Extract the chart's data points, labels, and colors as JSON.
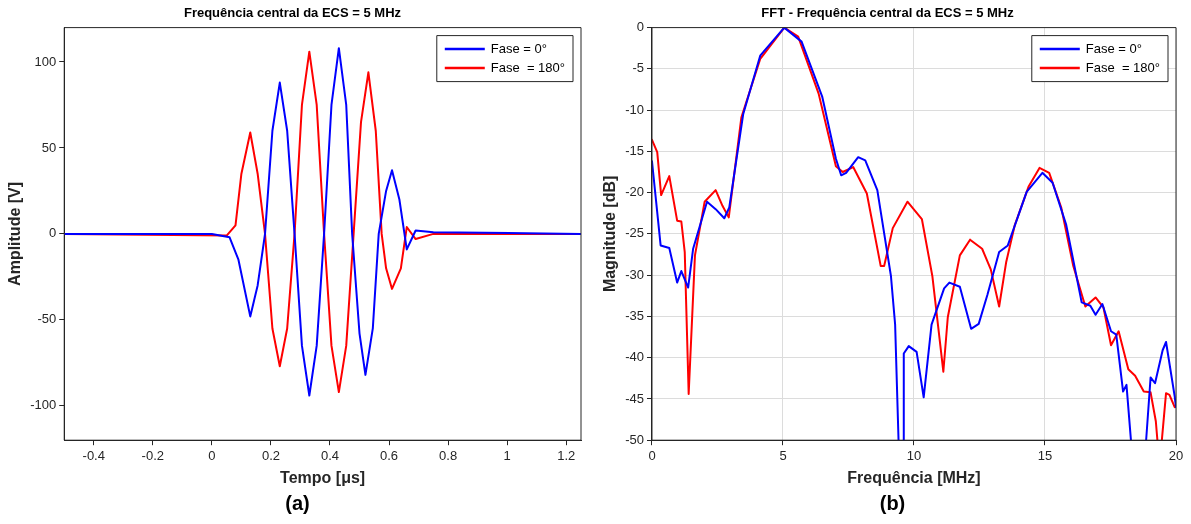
{
  "chart_data": [
    {
      "type": "line",
      "title": "Frequência central da ECS = 5 MHz",
      "xlabel": "Tempo [μs]",
      "ylabel": "Amplitude [V]",
      "xlim": [
        -0.5,
        1.25
      ],
      "xticks": [
        -0.4,
        -0.2,
        0,
        0.2,
        0.4,
        0.6,
        0.8,
        1,
        1.2
      ],
      "ylim": [
        -120,
        120
      ],
      "yticks": [
        -100,
        -50,
        0,
        50,
        100
      ],
      "grid": false,
      "legend": "top right",
      "marker": "none",
      "line_style": "solid",
      "annotations": [
        "(a)"
      ],
      "series": [
        {
          "name": "Fase = 0°",
          "color": "#0000ff",
          "x": [
            -0.5,
            0,
            0.06,
            0.09,
            0.13,
            0.155,
            0.18,
            0.205,
            0.23,
            0.255,
            0.28,
            0.305,
            0.33,
            0.355,
            0.38,
            0.405,
            0.43,
            0.455,
            0.475,
            0.5,
            0.52,
            0.545,
            0.565,
            0.59,
            0.61,
            0.635,
            0.66,
            0.69,
            0.75,
            1.25
          ],
          "values": [
            0,
            0,
            -2,
            -15,
            -48,
            -30,
            0,
            60,
            88,
            60,
            0,
            -65,
            -94,
            -65,
            0,
            75,
            108,
            75,
            0,
            -58,
            -82,
            -55,
            0,
            25,
            37,
            20,
            -9,
            2,
            1,
            0
          ]
        },
        {
          "name": "Fase  = 180°",
          "color": "#ff0000",
          "x": [
            -0.5,
            0.05,
            0.08,
            0.1,
            0.13,
            0.155,
            0.18,
            0.205,
            0.23,
            0.255,
            0.28,
            0.305,
            0.33,
            0.355,
            0.38,
            0.405,
            0.43,
            0.455,
            0.48,
            0.505,
            0.53,
            0.555,
            0.575,
            0.59,
            0.61,
            0.64,
            0.66,
            0.69,
            0.75,
            1.25
          ],
          "values": [
            0,
            -1,
            5,
            35,
            59,
            35,
            0,
            -55,
            -77,
            -55,
            0,
            75,
            106,
            75,
            0,
            -65,
            -92,
            -65,
            0,
            65,
            94,
            60,
            0,
            -20,
            -32,
            -20,
            4,
            -3,
            0,
            0
          ]
        }
      ]
    },
    {
      "type": "line",
      "title": "FFT - Frequência central da ECS = 5 MHz",
      "xlabel": "Frequência [MHz]",
      "ylabel": "Magnitude [dB]",
      "xlim": [
        0,
        20
      ],
      "xticks": [
        0,
        5,
        10,
        15,
        20
      ],
      "ylim": [
        -50,
        0
      ],
      "yticks": [
        -50,
        -45,
        -40,
        -35,
        -30,
        -25,
        -20,
        -15,
        -10,
        -5,
        0
      ],
      "grid": true,
      "legend": "top right",
      "marker": "none",
      "line_style": "solid",
      "annotations": [
        "(b)"
      ],
      "series": [
        {
          "name": "Fase = 0°",
          "color": "#0000ff",
          "x": [
            0,
            0.33,
            0.66,
            0.96,
            1.12,
            1.38,
            1.57,
            2.1,
            2.43,
            2.76,
            2.95,
            3.48,
            4.13,
            5.05,
            5.71,
            6.5,
            7.02,
            7.22,
            7.41,
            7.87,
            8.14,
            8.6,
            9.12,
            9.28,
            9.41,
            9.5,
            9.6,
            9.61,
            9.8,
            10.1,
            10.37,
            10.67,
            11.15,
            11.35,
            11.75,
            12.18,
            12.47,
            12.8,
            13.25,
            13.58,
            14.3,
            14.9,
            15.29,
            15.81,
            16.4,
            16.73,
            16.93,
            17.19,
            17.52,
            17.72,
            17.98,
            18.11,
            18.28,
            18.5,
            18.86,
            19.03,
            19.2,
            19.49,
            19.62,
            19.95,
            20
          ],
          "values": [
            -16.2,
            -26.4,
            -26.7,
            -30.9,
            -29.5,
            -31.5,
            -26.8,
            -21.1,
            -22,
            -23.1,
            -21.8,
            -10.5,
            -3.4,
            0,
            -1.7,
            -8.4,
            -15.9,
            -17.9,
            -17.6,
            -15.7,
            -16.1,
            -19.7,
            -30.1,
            -36,
            -50,
            null,
            -50,
            -39.5,
            -38.6,
            -39.3,
            -44.8,
            -36,
            -31.6,
            -30.9,
            -31.4,
            -36.5,
            -35.9,
            -32.4,
            -27.2,
            -26.4,
            -19.9,
            -17.6,
            -18.8,
            -23.9,
            -33.3,
            -33.7,
            -34.8,
            -33.5,
            -36.8,
            -37.2,
            -44.1,
            -43.3,
            -50,
            null,
            -50,
            -42.4,
            -43.1,
            -39.1,
            -38.1,
            -44.7,
            -46
          ]
        },
        {
          "name": "Fase  = 180°",
          "color": "#ff0000",
          "x": [
            0,
            0.2,
            0.35,
            0.66,
            0.96,
            1.12,
            1.25,
            1.4,
            1.64,
            2.01,
            2.43,
            2.69,
            2.93,
            3.41,
            4.13,
            5.05,
            5.58,
            6.36,
            7.02,
            7.28,
            7.68,
            8.2,
            8.73,
            8.86,
            9.19,
            9.75,
            10.3,
            10.7,
            11.12,
            11.29,
            11.75,
            12.14,
            12.6,
            12.93,
            13.25,
            13.52,
            13.85,
            14.37,
            14.79,
            15.16,
            15.62,
            16.08,
            16.54,
            16.93,
            17.23,
            17.52,
            17.81,
            18.18,
            18.44,
            18.77,
            19.03,
            19.23,
            19.29,
            19.38,
            19.46,
            19.62,
            19.75,
            19.95
          ],
          "values": [
            -13.6,
            -15.1,
            -20.3,
            -18,
            -23.4,
            -23.5,
            -27.2,
            -44.4,
            -27.6,
            -21.1,
            -19.7,
            -21.6,
            -23,
            -10.9,
            -3.8,
            0,
            -1.1,
            -8,
            -16.8,
            -17.5,
            -16.9,
            -20.1,
            -28.9,
            -28.9,
            -24.3,
            -21.1,
            -23.2,
            -30.1,
            -41.7,
            -35.1,
            -27.6,
            -25.7,
            -26.8,
            -29.3,
            -33.8,
            -28.4,
            -23.9,
            -19.3,
            -17,
            -17.6,
            -21.8,
            -28.9,
            -33.8,
            -32.7,
            -33.9,
            -38.5,
            -36.8,
            -41.4,
            -42.2,
            -44.1,
            -44.2,
            -47.7,
            -50,
            null,
            -50,
            -44.3,
            -44.5,
            -46
          ]
        }
      ]
    }
  ]
}
